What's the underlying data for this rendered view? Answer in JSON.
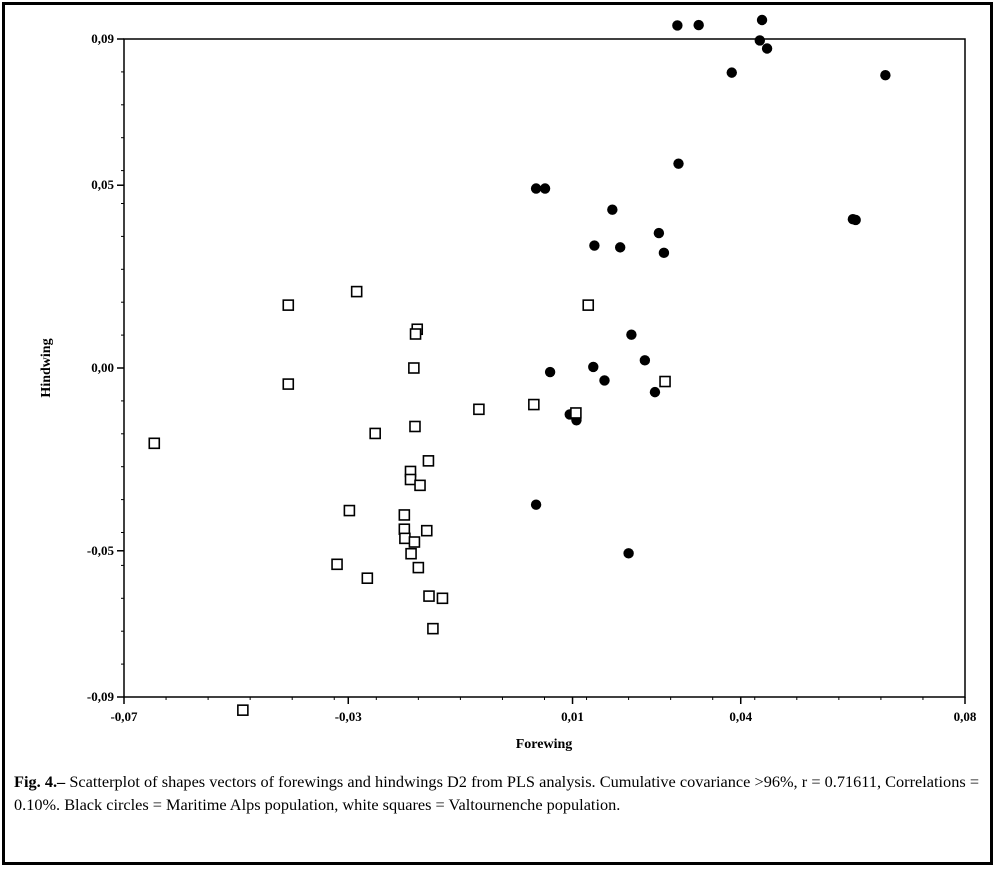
{
  "chart_data": {
    "type": "scatter",
    "xlabel": "Forewing",
    "ylabel": "Hindwing",
    "xlim": [
      -0.07,
      0.08
    ],
    "ylim": [
      -0.09,
      0.09
    ],
    "xticks": [
      -0.07,
      -0.03,
      0.01,
      0.04,
      0.08
    ],
    "xtick_labels": [
      "-0,07",
      "-0,03",
      "0,01",
      "0,04",
      "0,08"
    ],
    "yticks": [
      -0.09,
      -0.05,
      0.0,
      0.05,
      0.09
    ],
    "ytick_labels": [
      "-0,09",
      "-0,05",
      "0,00",
      "0,05",
      "0,09"
    ],
    "grid": false,
    "legend": "none",
    "series": [
      {
        "marker": "filled-circle",
        "color": "#000000",
        "points": [
          [
            0.0325,
            0.0938
          ],
          [
            0.0287,
            0.0937
          ],
          [
            0.0438,
            0.0952
          ],
          [
            0.0434,
            0.0896
          ],
          [
            0.0447,
            0.0874
          ],
          [
            0.0384,
            0.0808
          ],
          [
            0.0658,
            0.0801
          ],
          [
            0.0289,
            0.0559
          ],
          [
            0.06,
            0.0407
          ],
          [
            0.0605,
            0.0405
          ],
          [
            0.0035,
            0.0491
          ],
          [
            0.0051,
            0.0491
          ],
          [
            0.0171,
            0.0433
          ],
          [
            0.0254,
            0.0369
          ],
          [
            0.0139,
            0.0335
          ],
          [
            0.0185,
            0.033
          ],
          [
            0.0263,
            0.0315
          ],
          [
            0.0205,
            0.0091
          ],
          [
            0.0229,
            0.0021
          ],
          [
            0.0137,
            0.0003
          ],
          [
            0.006,
            -0.0011
          ],
          [
            0.0157,
            -0.0034
          ],
          [
            0.0247,
            -0.0066
          ],
          [
            0.0095,
            -0.0127
          ],
          [
            0.0107,
            -0.0143
          ],
          [
            0.0035,
            -0.0374
          ],
          [
            0.02,
            -0.0507
          ]
        ]
      },
      {
        "marker": "open-square",
        "color": "#000000",
        "points": [
          [
            -0.0285,
            0.0209
          ],
          [
            -0.0407,
            0.0172
          ],
          [
            -0.0177,
            0.0106
          ],
          [
            -0.018,
            0.0093
          ],
          [
            0.0128,
            0.0172
          ],
          [
            -0.0183,
            0.0
          ],
          [
            -0.0407,
            -0.0044
          ],
          [
            0.0265,
            -0.0037
          ],
          [
            -0.0067,
            -0.0113
          ],
          [
            -0.0181,
            -0.016
          ],
          [
            -0.0252,
            -0.0179
          ],
          [
            0.0031,
            -0.01
          ],
          [
            0.0106,
            -0.0123
          ],
          [
            -0.0646,
            -0.0206
          ],
          [
            -0.0157,
            -0.0254
          ],
          [
            -0.0189,
            -0.0283
          ],
          [
            -0.0189,
            -0.0305
          ],
          [
            -0.0172,
            -0.0321
          ],
          [
            -0.0298,
            -0.039
          ],
          [
            -0.02,
            -0.0402
          ],
          [
            -0.02,
            -0.0441
          ],
          [
            -0.0199,
            -0.0466
          ],
          [
            -0.0182,
            -0.0476
          ],
          [
            -0.016,
            -0.0445
          ],
          [
            -0.0188,
            -0.0508
          ],
          [
            -0.0175,
            -0.0546
          ],
          [
            -0.032,
            -0.0537
          ],
          [
            -0.0266,
            -0.0575
          ],
          [
            -0.0156,
            -0.0624
          ],
          [
            -0.0132,
            -0.063
          ],
          [
            -0.0149,
            -0.0713
          ],
          [
            -0.0488,
            -0.0936
          ]
        ]
      }
    ]
  },
  "caption": {
    "label": "Fig. 4.–",
    "text": "Scatterplot of shapes vectors of forewings and hindwings D2 from PLS analysis. Cumulative covariance >96%, r = 0.71611, Correlations = 0.10%. Black circles = Maritime Alps population, white squares = Valtournenche population."
  }
}
